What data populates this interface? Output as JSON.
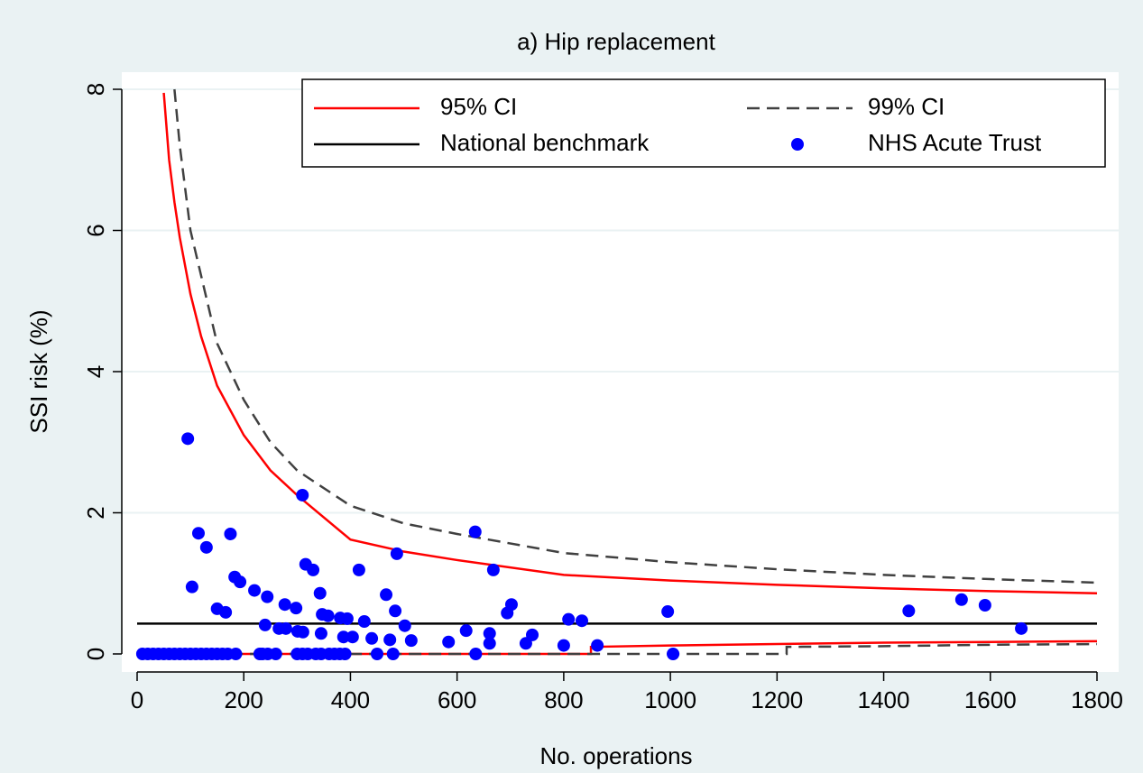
{
  "chart_data": {
    "type": "scatter",
    "title": "a) Hip replacement",
    "xlabel": "No. operations",
    "ylabel": "SSI risk (%)",
    "xlim": [
      0,
      1800
    ],
    "ylim": [
      0,
      8
    ],
    "xticks": [
      0,
      200,
      400,
      600,
      800,
      1000,
      1200,
      1400,
      1600,
      1800
    ],
    "yticks": [
      0,
      2,
      4,
      6,
      8
    ],
    "grid": true,
    "legend": "top-right",
    "series": [
      {
        "name": "95% CI",
        "color": "#ff0000",
        "kind": "line",
        "dash": "solid",
        "lines": [
          {
            "x": [
              50,
              60,
              70,
              80,
              100,
              120,
              150,
              200,
              250,
              300,
              400,
              500,
              600,
              800,
              1000,
              1200,
              1400,
              1600,
              1800
            ],
            "values": [
              7.95,
              7.0,
              6.4,
              5.9,
              5.1,
              4.5,
              3.8,
              3.1,
              2.6,
              2.25,
              1.62,
              1.45,
              1.33,
              1.12,
              1.04,
              0.98,
              0.93,
              0.89,
              0.86
            ]
          },
          {
            "x": [
              100,
              851,
              851,
              1000,
              1200,
              1400,
              1600,
              1800
            ],
            "values": [
              0,
              0,
              0.1,
              0.12,
              0.14,
              0.16,
              0.17,
              0.18
            ]
          }
        ]
      },
      {
        "name": "99% CI",
        "color": "#404040",
        "kind": "line",
        "dash": "dashed",
        "lines": [
          {
            "x": [
              70,
              80,
              100,
              150,
              200,
              250,
              300,
              400,
              500,
              600,
              800,
              1000,
              1200,
              1400,
              1600,
              1800
            ],
            "values": [
              8,
              7.2,
              6.0,
              4.4,
              3.6,
              3.0,
              2.6,
              2.1,
              1.85,
              1.7,
              1.43,
              1.3,
              1.2,
              1.12,
              1.06,
              1.01
            ]
          },
          {
            "x": [
              100,
              1218,
              1218,
              1400,
              1600,
              1800
            ],
            "values": [
              0,
              0,
              0.1,
              0.11,
              0.13,
              0.14
            ]
          }
        ]
      },
      {
        "name": "National benchmark",
        "color": "#000000",
        "kind": "line",
        "dash": "solid",
        "lines": [
          {
            "x": [
              0,
              1800
            ],
            "values": [
              0.43,
              0.43
            ]
          }
        ]
      },
      {
        "name": "NHS Acute Trust",
        "color": "#0000ff",
        "kind": "points",
        "x": [
          10,
          20,
          30,
          40,
          50,
          60,
          70,
          80,
          90,
          100,
          110,
          120,
          130,
          140,
          150,
          160,
          170,
          185,
          230,
          235,
          245,
          260,
          300,
          310,
          320,
          335,
          345,
          360,
          370,
          380,
          390,
          450,
          480,
          635,
          1005,
          95,
          310,
          115,
          130,
          175,
          183,
          193,
          103,
          220,
          244,
          150,
          166,
          277,
          298,
          316,
          330,
          343,
          347,
          358,
          381,
          394,
          416,
          467,
          487,
          484,
          502,
          426,
          240,
          266,
          279,
          301,
          311,
          345,
          387,
          404,
          440,
          474,
          514,
          584,
          617,
          634,
          668,
          661,
          661,
          694,
          702,
          729,
          741,
          809,
          834,
          800,
          863,
          995,
          1447,
          1546,
          1590,
          1658
        ],
        "values": [
          0,
          0,
          0,
          0,
          0,
          0,
          0,
          0,
          0,
          0,
          0,
          0,
          0,
          0,
          0,
          0,
          0,
          0,
          0,
          0,
          0,
          0,
          0,
          0,
          0,
          0,
          0,
          0,
          0,
          0,
          0,
          0,
          0,
          0,
          0,
          3.05,
          2.25,
          1.71,
          1.51,
          1.7,
          1.09,
          1.02,
          0.95,
          0.9,
          0.81,
          0.64,
          0.59,
          0.7,
          0.65,
          1.27,
          1.19,
          0.86,
          0.56,
          0.54,
          0.51,
          0.5,
          1.19,
          0.84,
          1.42,
          0.61,
          0.4,
          0.46,
          0.41,
          0.36,
          0.36,
          0.32,
          0.31,
          0.29,
          0.24,
          0.24,
          0.22,
          0.2,
          0.19,
          0.17,
          0.33,
          1.73,
          1.19,
          0.29,
          0.15,
          0.58,
          0.7,
          0.15,
          0.27,
          0.49,
          0.47,
          0.12,
          0.12,
          0.6,
          0.61,
          0.77,
          0.69,
          0.36
        ]
      }
    ]
  }
}
